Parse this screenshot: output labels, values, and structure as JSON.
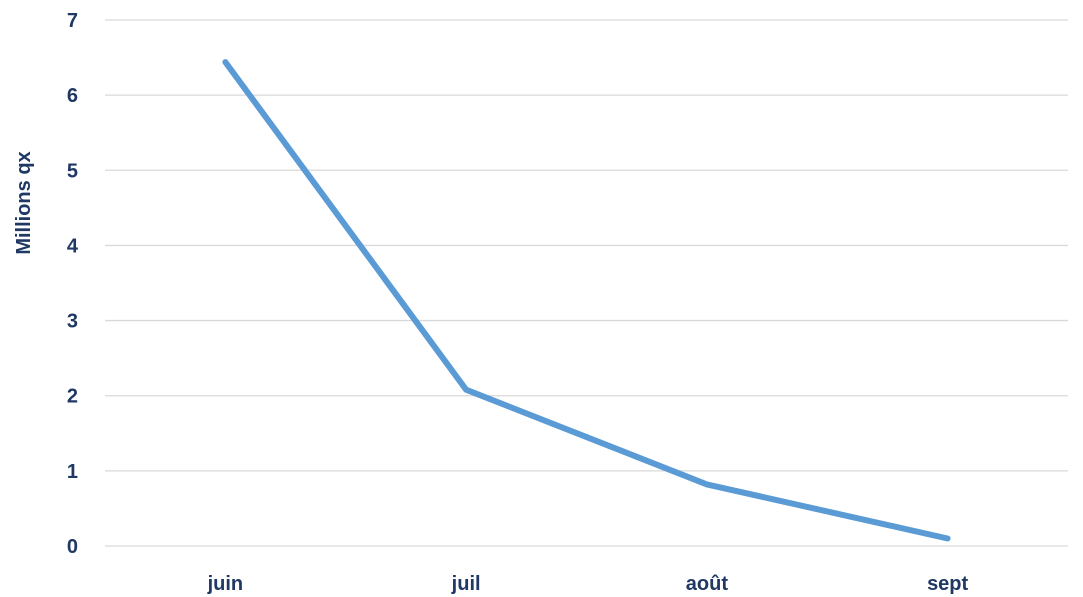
{
  "chart_data": {
    "type": "line",
    "title": "",
    "xlabel": "",
    "ylabel": "Millions qx",
    "categories": [
      "juin",
      "juil",
      "août",
      "sept"
    ],
    "series": [
      {
        "values": [
          6.44,
          2.08,
          0.82,
          0.1
        ]
      }
    ],
    "ylim": [
      0,
      7
    ],
    "yticks": [
      "0",
      "1",
      "2",
      "3",
      "4",
      "5",
      "6",
      "7"
    ],
    "grid": true,
    "legend": "none",
    "colors": {
      "line": "#5b9bd5",
      "grid": "#d9d9d9",
      "text": "#1f3864"
    }
  }
}
